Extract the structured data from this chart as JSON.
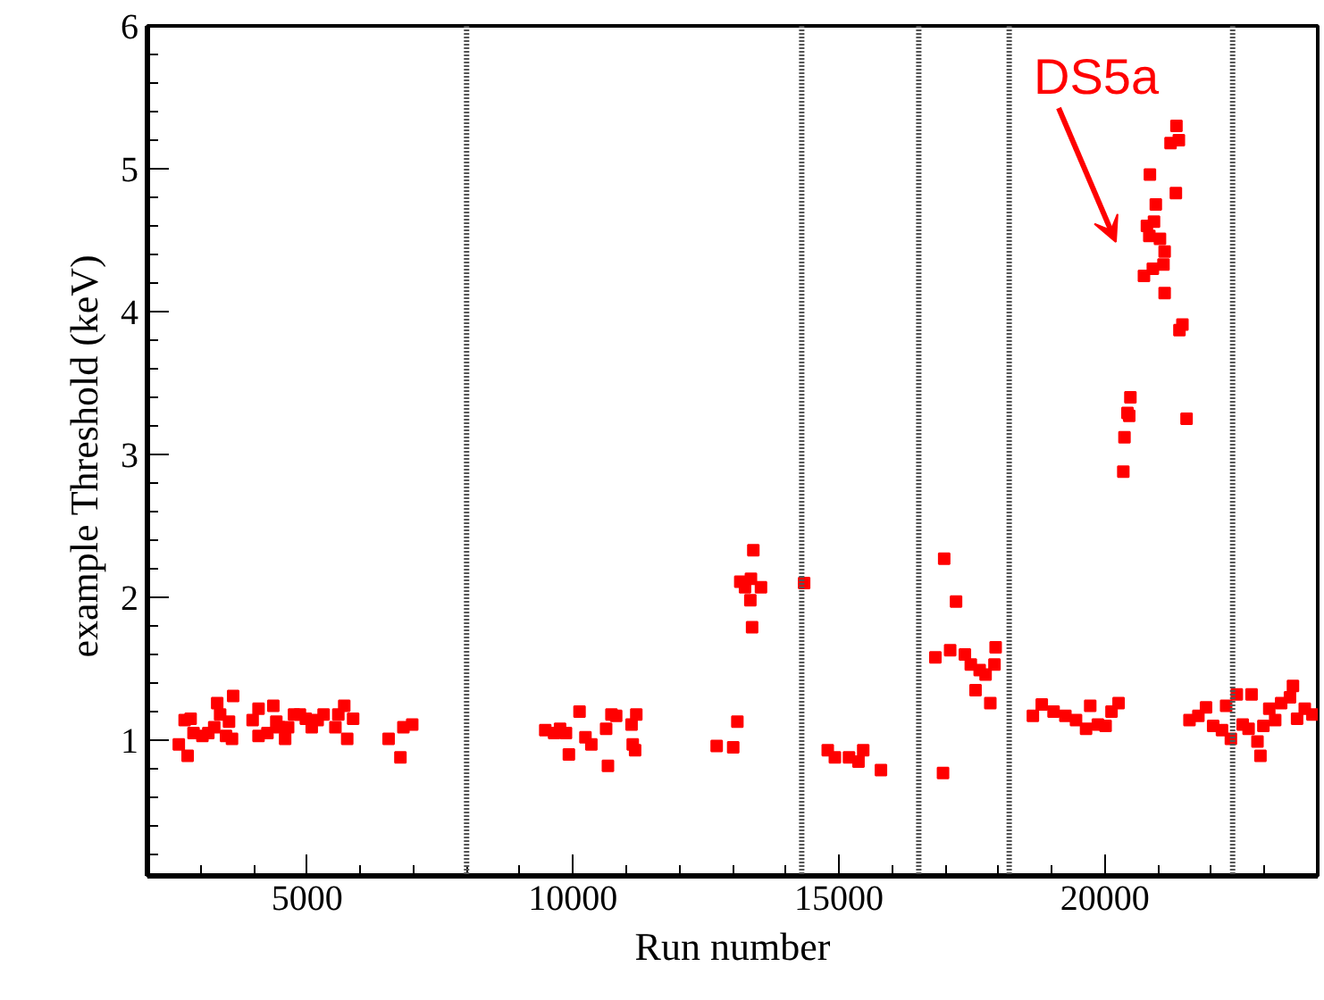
{
  "chart_data": {
    "type": "scatter",
    "xlabel": "Run number",
    "ylabel": "example  Threshold (keV)",
    "xlim": [
      2000,
      24000
    ],
    "xticks": [
      5000,
      10000,
      15000,
      20000
    ],
    "ylim": [
      0.05,
      6
    ],
    "yticks": [
      1,
      2,
      3,
      4,
      5,
      6
    ],
    "grid": false,
    "marker": "square",
    "annotations": [
      "DS5a"
    ],
    "ref_lines": [
      {
        "axis": "x",
        "value": 8000,
        "color": "#555555",
        "line_style": "dotted"
      },
      {
        "axis": "x",
        "value": 14300,
        "color": "#555555",
        "line_style": "dotted"
      },
      {
        "axis": "x",
        "value": 16500,
        "color": "#555555",
        "line_style": "dotted"
      },
      {
        "axis": "x",
        "value": 18200,
        "color": "#555555",
        "line_style": "dotted"
      },
      {
        "axis": "x",
        "value": 22400,
        "color": "#555555",
        "line_style": "dotted"
      }
    ],
    "series": [
      {
        "color": "#ff0000",
        "x": [
          2590,
          2756,
          2700,
          2812,
          2867,
          3034,
          3145,
          3256,
          3312,
          3367,
          3478,
          3534,
          3590,
          3612,
          3978,
          4089,
          4089,
          4256,
          4367,
          4423,
          4478,
          4589,
          4645,
          4756,
          4867,
          4978,
          5089,
          5200,
          5312,
          5534,
          5589,
          5700,
          5756,
          5867,
          6534,
          6756,
          6812,
          6978,
          9479,
          9645,
          9757,
          9868,
          9923,
          10123,
          10234,
          10345,
          10623,
          10657,
          10723,
          10812,
          11101,
          11123,
          11168,
          11190,
          12701,
          13012,
          13090,
          13145,
          13234,
          13345,
          13334,
          13390,
          13367,
          13534,
          14345,
          14789,
          14923,
          15189,
          15367,
          15456,
          15789,
          16812,
          16978,
          16956,
          17090,
          17201,
          17367,
          17478,
          17567,
          17645,
          17756,
          17845,
          17923,
          17945,
          18645,
          18812,
          19034,
          19256,
          19456,
          19645,
          19723,
          19867,
          20012,
          20123,
          20256,
          21589,
          21756,
          21900,
          22034,
          22200,
          22278,
          22367,
          22478,
          22589,
          22700,
          22756,
          22867,
          22923,
          22978,
          23089,
          23200,
          23312,
          23478,
          23534,
          23612,
          23756,
          23900,
          21344,
          21233,
          21389,
          20845,
          21333,
          20956,
          20922,
          20789,
          21034,
          20834,
          21122,
          21100,
          20900,
          20733,
          21122,
          21456,
          21400,
          20478,
          20423,
          20456,
          21534,
          20367,
          20345
        ],
        "values": [
          0.97,
          0.89,
          1.14,
          1.15,
          1.05,
          1.03,
          1.05,
          1.09,
          1.26,
          1.18,
          1.03,
          1.13,
          1.01,
          1.31,
          1.14,
          1.22,
          1.03,
          1.05,
          1.24,
          1.13,
          1.09,
          1.01,
          1.09,
          1.18,
          1.18,
          1.15,
          1.09,
          1.14,
          1.18,
          1.09,
          1.18,
          1.24,
          1.01,
          1.15,
          1.01,
          0.88,
          1.09,
          1.11,
          1.07,
          1.05,
          1.08,
          1.05,
          0.9,
          1.2,
          1.02,
          0.97,
          1.08,
          0.82,
          1.18,
          1.17,
          1.11,
          0.97,
          0.93,
          1.18,
          0.96,
          0.95,
          1.13,
          2.11,
          2.07,
          2.13,
          1.98,
          2.33,
          1.79,
          2.07,
          2.1,
          0.93,
          0.88,
          0.88,
          0.85,
          0.93,
          0.79,
          1.58,
          2.27,
          0.77,
          1.63,
          1.97,
          1.6,
          1.53,
          1.35,
          1.49,
          1.46,
          1.26,
          1.53,
          1.65,
          1.17,
          1.25,
          1.2,
          1.17,
          1.14,
          1.08,
          1.24,
          1.11,
          1.1,
          1.2,
          1.26,
          1.14,
          1.17,
          1.23,
          1.1,
          1.07,
          1.24,
          1.01,
          1.32,
          1.11,
          1.08,
          1.32,
          0.99,
          0.89,
          1.1,
          1.22,
          1.14,
          1.26,
          1.3,
          1.38,
          1.15,
          1.22,
          1.18,
          5.3,
          5.18,
          5.2,
          4.96,
          4.83,
          4.75,
          4.63,
          4.6,
          4.51,
          4.53,
          4.42,
          4.33,
          4.3,
          4.25,
          4.13,
          3.91,
          3.87,
          3.4,
          3.29,
          3.27,
          3.25,
          3.12,
          2.88
        ]
      }
    ]
  }
}
